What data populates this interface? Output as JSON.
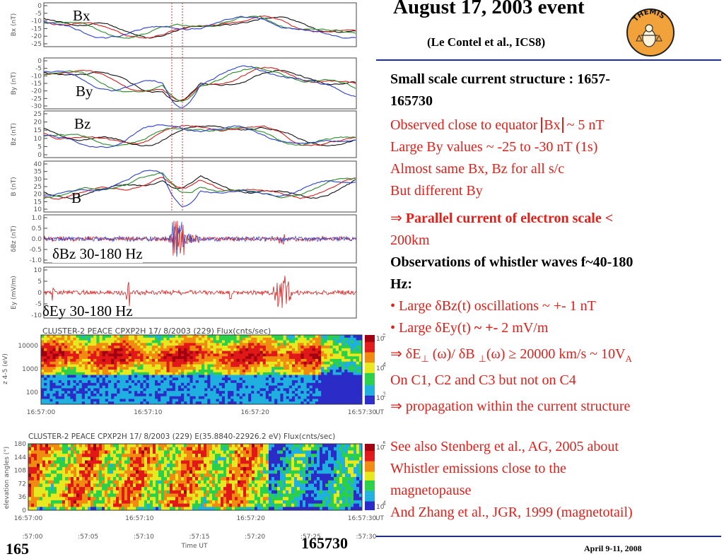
{
  "header": {
    "title": "August 17, 2003 event",
    "subtitle": "(Le Contel et al., ICS8)",
    "logo_text": "THEMIS"
  },
  "panels": {
    "bx": {
      "label": "Bx",
      "axis": "Bx (nT)",
      "ticks": [
        "0",
        "-5",
        "-10",
        "-15",
        "-20",
        "-25"
      ]
    },
    "by": {
      "label": "By",
      "axis": "By (nT)",
      "ticks": [
        "0",
        "-5",
        "-10",
        "-15",
        "-20",
        "-25",
        "-30"
      ]
    },
    "bz": {
      "label": "Bz",
      "axis": "Bz (nT)",
      "ticks": [
        "25",
        "20",
        "15",
        "10",
        "5",
        "0"
      ]
    },
    "b": {
      "label": "B",
      "axis": "B (nT)",
      "ticks": [
        "40",
        "35",
        "30",
        "25",
        "20",
        "15",
        "10"
      ]
    },
    "dbz": {
      "label": "δBz 30-180 Hz",
      "axis": "δBz (nT)",
      "ticks": [
        "1.0",
        "0.5",
        "0.0",
        "-0.5",
        "-1.0"
      ]
    },
    "ey": {
      "label": "δEy 30-180 Hz",
      "axis": "Ey (mV/m)",
      "ticks": [
        "10",
        "5",
        "0",
        "-5",
        "-10"
      ]
    }
  },
  "spectrogram1": {
    "title": "CLUSTER-2  PEACE  CPXP2H  17/ 8/2003 (229)  Flux(cnts/sec)",
    "axis": "z 4-5 (eV)",
    "yticks": [
      "10000",
      "1000",
      "100"
    ],
    "xticks": [
      "16:57:00",
      "16:57:10",
      "16:57:20",
      "16:57:30"
    ],
    "unit": "UT",
    "cbar": [
      "10",
      "10",
      "10"
    ],
    "cbar_exp": [
      "5",
      "4",
      "3"
    ]
  },
  "spectrogram2": {
    "title": "CLUSTER-2  PEACE  CPXP2H  17/ 8/2003 (229)  E(35.8840-22926.2 eV)  Flux(cnts/sec)",
    "axis": "elevation angles (°)",
    "yticks": [
      "180",
      "144",
      "108",
      "72",
      "36",
      "0"
    ],
    "xticks": [
      "16:57:00",
      "16:57:10",
      "16:57:20",
      "16:57:30"
    ],
    "unit": "UT",
    "cbar": [
      "10",
      "10"
    ],
    "cbar_exp": [
      "5",
      "4"
    ]
  },
  "time_axis": {
    "ticks": [
      ":57:00",
      ":57:05",
      ":57:10",
      ":57:15",
      ":57:20",
      ":57:25",
      ":57:30"
    ],
    "label": "Time UT"
  },
  "content": {
    "heading": "Small scale current structure : 1657-",
    "heading2": "165730",
    "line1": "Observed close to equator ",
    "line1b": "Bx",
    "line1c": " ~ 5 nT",
    "line2": "Large By values ~ -25 to -30 nT (1s)",
    "line3": "Almost same Bx, Bz for all s/c",
    "line4": "But different By",
    "arrow1": "⇒ ",
    "arrow1_bold": "Parallel current of electron scale <",
    "arrow1_cont": "200km",
    "obs": "Observations of whistler waves f~40-180",
    "obs2": "Hz:",
    "bullet1": "• Large δBz(t) oscillations ~ +- 1 nT",
    "bullet2": "• Large δEy(t) ",
    "bullet2b": "~ +-",
    "bullet2c": " 2 mV/m",
    "ratio": "⇒ δE",
    "ratio_sub1": "⊥",
    "ratio_mid": " (ω)/ δB ",
    "ratio_sub2": "⊥",
    "ratio_end": "(ω) ≥  20000 km/s ~ 10V",
    "ratio_sub3": "A",
    "sc": "On C1, C2 and C3 but not on C4",
    "arrow2": "⇒  propagation within the current structure",
    "ref1": "See also Stenberg et al., AG, 2005 about",
    "ref2": "Whistler emissions close to the",
    "ref3": "magnetopause",
    "ref4": "And Zhang et al., JGR, 1999 (magnetotail)"
  },
  "footer": {
    "page": "165",
    "id": "165730",
    "date": "April 9-11, 2008"
  },
  "colors": {
    "accent_blue": "#1f2d8f",
    "text_red": "#e0201b",
    "trace_blue": "#2b3fc9",
    "trace_red": "#d42020",
    "trace_green": "#2a8a2a",
    "trace_black": "#111111"
  }
}
